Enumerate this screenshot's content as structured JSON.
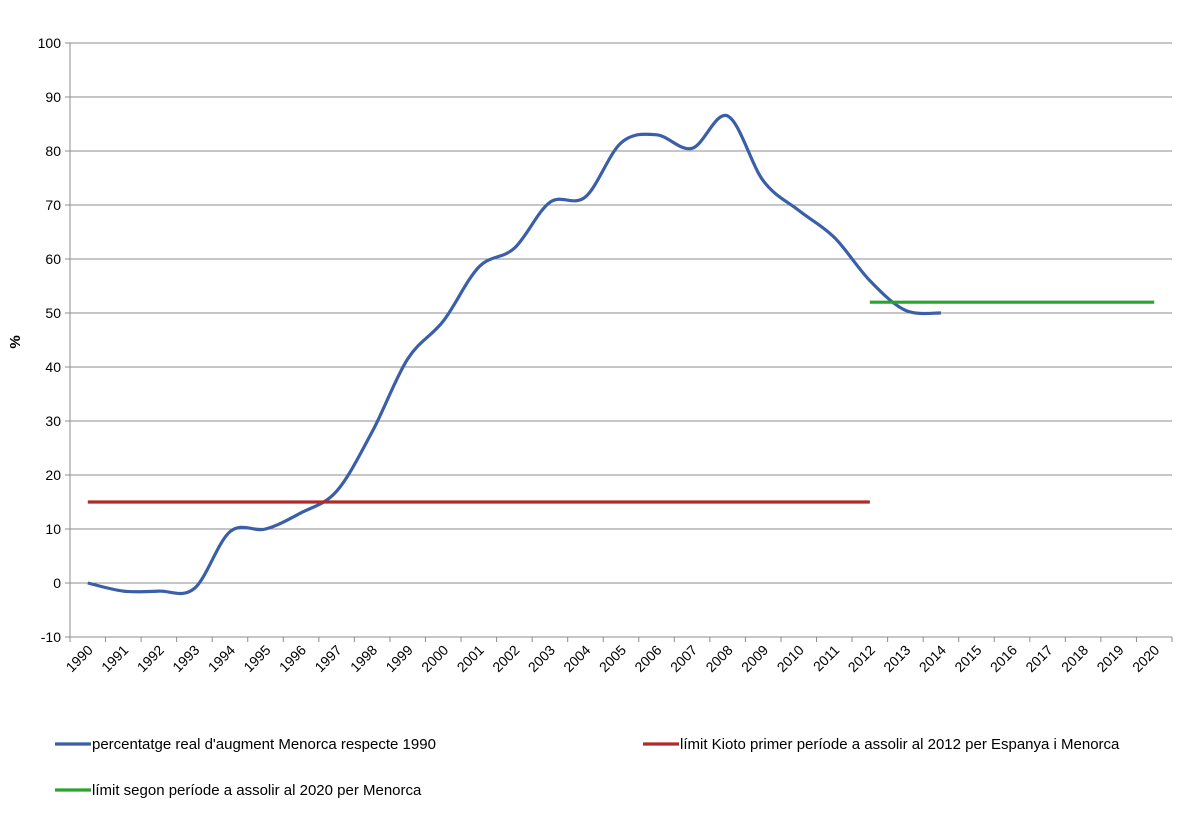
{
  "chart_data": {
    "type": "line",
    "title": "",
    "xlabel": "",
    "ylabel": "%",
    "ylim": [
      -10,
      100
    ],
    "yticks": [
      "-10",
      "0",
      "10",
      "20",
      "30",
      "40",
      "50",
      "60",
      "70",
      "80",
      "90",
      "100"
    ],
    "grid": "horizontal",
    "legend_position": "bottom",
    "categories": [
      "1990",
      "1991",
      "1992",
      "1993",
      "1994",
      "1995",
      "1996",
      "1997",
      "1998",
      "1999",
      "2000",
      "2001",
      "2002",
      "2003",
      "2004",
      "2005",
      "2006",
      "2007",
      "2008",
      "2009",
      "2010",
      "2011",
      "2012",
      "2013",
      "2014",
      "2015",
      "2016",
      "2017",
      "2018",
      "2019",
      "2020"
    ],
    "series": [
      {
        "name": "percentatge real d'augment Menorca respecte 1990",
        "color": "#3a5fa8",
        "values": [
          0,
          -1.5,
          -1.5,
          -1.0,
          9.5,
          10.0,
          13.0,
          17.0,
          28.0,
          41.5,
          48.5,
          58.5,
          62.0,
          70.5,
          71.5,
          81.5,
          83.0,
          80.5,
          86.5,
          74.5,
          69.0,
          64.0,
          56.0,
          50.5,
          50.0,
          null,
          null,
          null,
          null,
          null,
          null
        ]
      },
      {
        "name": "límit Kioto primer període a assolir al 2012 per Espanya i Menorca",
        "color": "#b02a2a",
        "values": [
          15,
          15,
          15,
          15,
          15,
          15,
          15,
          15,
          15,
          15,
          15,
          15,
          15,
          15,
          15,
          15,
          15,
          15,
          15,
          15,
          15,
          15,
          15,
          null,
          null,
          null,
          null,
          null,
          null,
          null,
          null
        ]
      },
      {
        "name": "límit segon període a assolir al 2020 per Menorca",
        "color": "#2aa52a",
        "values": [
          null,
          null,
          null,
          null,
          null,
          null,
          null,
          null,
          null,
          null,
          null,
          null,
          null,
          null,
          null,
          null,
          null,
          null,
          null,
          null,
          null,
          null,
          52,
          52,
          52,
          52,
          52,
          52,
          52,
          52,
          52
        ]
      }
    ]
  }
}
